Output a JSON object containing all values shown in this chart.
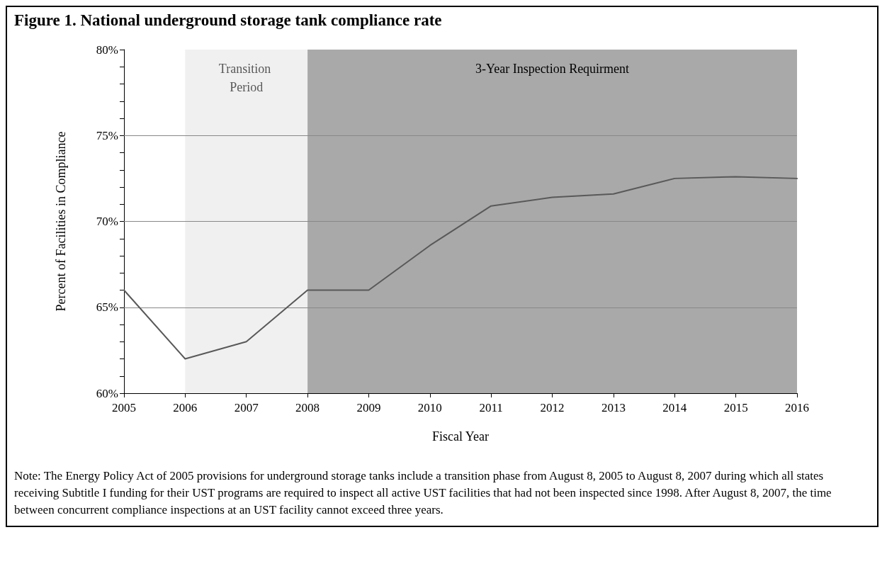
{
  "chart_data": {
    "type": "line",
    "title": "Figure 1.  National underground storage tank compliance rate",
    "xlabel": "Fiscal Year",
    "ylabel": "Percent of Facilities in Compliance",
    "x": [
      2005,
      2006,
      2007,
      2008,
      2009,
      2010,
      2011,
      2012,
      2013,
      2014,
      2015,
      2016
    ],
    "series": [
      {
        "color": "#595959",
        "values": [
          66,
          62,
          63,
          66,
          66,
          68.6,
          70.9,
          71.4,
          71.6,
          72.5,
          72.6,
          72.5
        ]
      }
    ],
    "xlim": [
      2005,
      2016
    ],
    "xticks": [
      2005,
      2006,
      2007,
      2008,
      2009,
      2010,
      2011,
      2012,
      2013,
      2014,
      2015,
      2016
    ],
    "ylim": [
      60,
      80
    ],
    "yticks": [
      {
        "value": 60,
        "label": "60%"
      },
      {
        "value": 61,
        "label": null
      },
      {
        "value": 62,
        "label": null
      },
      {
        "value": 63,
        "label": null
      },
      {
        "value": 64,
        "label": null
      },
      {
        "value": 65,
        "label": "65%"
      },
      {
        "value": 66,
        "label": null
      },
      {
        "value": 67,
        "label": null
      },
      {
        "value": 68,
        "label": null
      },
      {
        "value": 69,
        "label": null
      },
      {
        "value": 70,
        "label": "70%"
      },
      {
        "value": 71,
        "label": null
      },
      {
        "value": 72,
        "label": null
      },
      {
        "value": 73,
        "label": null
      },
      {
        "value": 74,
        "label": null
      },
      {
        "value": 75,
        "label": "75%"
      },
      {
        "value": 76,
        "label": null
      },
      {
        "value": 77,
        "label": null
      },
      {
        "value": 78,
        "label": null
      },
      {
        "value": 79,
        "label": null
      },
      {
        "value": 80,
        "label": "80%"
      }
    ],
    "grid": "y",
    "marker": "none",
    "line_style": "solid",
    "bands": [
      {
        "axis": "x",
        "from": 2006,
        "to": 2008,
        "label": "Transition Period",
        "color": "#f0f0f0"
      },
      {
        "axis": "x",
        "from": 2008,
        "to": 2016,
        "label": "3-Year Inspection Requirment",
        "color": "#a9a9a9"
      }
    ],
    "annotations": [
      "Note: The Energy Policy Act of 2005 provisions for underground storage tanks include a transition phase from August 8, 2005 to August 8, 2007 during which all states receiving Subtitle I funding for their UST programs are required to inspect all active UST facilities that had not been inspected since 1998. After August 8, 2007, the time between concurrent compliance inspections at an UST facility cannot exceed three years."
    ]
  }
}
